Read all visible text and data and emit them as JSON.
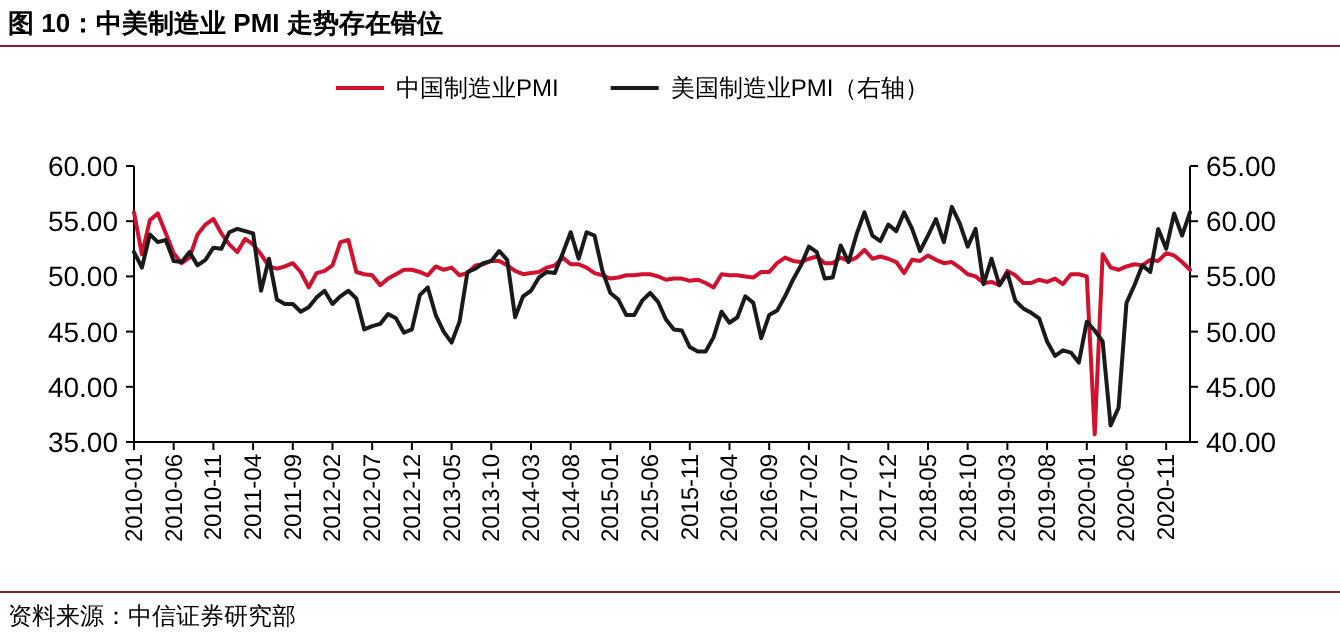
{
  "chart_data": {
    "type": "line",
    "title": "图 10：中美制造业 PMI 走势存在错位",
    "legend": "top",
    "x": [
      "2010-01",
      "2010-02",
      "2010-03",
      "2010-04",
      "2010-05",
      "2010-06",
      "2010-07",
      "2010-08",
      "2010-09",
      "2010-10",
      "2010-11",
      "2010-12",
      "2011-01",
      "2011-02",
      "2011-03",
      "2011-04",
      "2011-05",
      "2011-06",
      "2011-07",
      "2011-08",
      "2011-09",
      "2011-10",
      "2011-11",
      "2011-12",
      "2012-01",
      "2012-02",
      "2012-03",
      "2012-04",
      "2012-05",
      "2012-06",
      "2012-07",
      "2012-08",
      "2012-09",
      "2012-10",
      "2012-11",
      "2012-12",
      "2013-01",
      "2013-02",
      "2013-03",
      "2013-04",
      "2013-05",
      "2013-06",
      "2013-07",
      "2013-08",
      "2013-09",
      "2013-10",
      "2013-11",
      "2013-12",
      "2014-01",
      "2014-02",
      "2014-03",
      "2014-04",
      "2014-05",
      "2014-06",
      "2014-07",
      "2014-08",
      "2014-09",
      "2014-10",
      "2014-11",
      "2014-12",
      "2015-01",
      "2015-02",
      "2015-03",
      "2015-04",
      "2015-05",
      "2015-06",
      "2015-07",
      "2015-08",
      "2015-09",
      "2015-10",
      "2015-11",
      "2015-12",
      "2016-01",
      "2016-02",
      "2016-03",
      "2016-04",
      "2016-05",
      "2016-06",
      "2016-07",
      "2016-08",
      "2016-09",
      "2016-10",
      "2016-11",
      "2016-12",
      "2017-01",
      "2017-02",
      "2017-03",
      "2017-04",
      "2017-05",
      "2017-06",
      "2017-07",
      "2017-08",
      "2017-09",
      "2017-10",
      "2017-11",
      "2017-12",
      "2018-01",
      "2018-02",
      "2018-03",
      "2018-04",
      "2018-05",
      "2018-06",
      "2018-07",
      "2018-08",
      "2018-09",
      "2018-10",
      "2018-11",
      "2018-12",
      "2019-01",
      "2019-02",
      "2019-03",
      "2019-04",
      "2019-05",
      "2019-06",
      "2019-07",
      "2019-08",
      "2019-09",
      "2019-10",
      "2019-11",
      "2019-12",
      "2020-01",
      "2020-02",
      "2020-03",
      "2020-04",
      "2020-05",
      "2020-06",
      "2020-07",
      "2020-08",
      "2020-09",
      "2020-10",
      "2020-11",
      "2020-12",
      "2021-01",
      "2021-02"
    ],
    "series": [
      {
        "name": "中国制造业PMI",
        "color": "#d2112f",
        "values": [
          55.8,
          52.0,
          55.1,
          55.7,
          53.9,
          52.1,
          51.2,
          51.7,
          53.8,
          54.7,
          55.2,
          53.9,
          52.9,
          52.2,
          53.4,
          52.9,
          52.0,
          50.9,
          50.7,
          50.9,
          51.2,
          50.4,
          49.0,
          50.3,
          50.5,
          51.0,
          53.1,
          53.3,
          50.4,
          50.2,
          50.1,
          49.2,
          49.8,
          50.2,
          50.6,
          50.6,
          50.4,
          50.1,
          50.9,
          50.6,
          50.8,
          50.1,
          50.3,
          51.0,
          51.1,
          51.4,
          51.4,
          51.0,
          50.5,
          50.2,
          50.3,
          50.4,
          50.8,
          51.0,
          51.7,
          51.1,
          51.1,
          50.8,
          50.3,
          50.1,
          49.8,
          49.9,
          50.1,
          50.1,
          50.2,
          50.2,
          50.0,
          49.7,
          49.8,
          49.8,
          49.6,
          49.7,
          49.4,
          49.0,
          50.2,
          50.1,
          50.1,
          50.0,
          49.9,
          50.4,
          50.4,
          51.2,
          51.7,
          51.4,
          51.3,
          51.6,
          51.8,
          51.2,
          51.2,
          51.7,
          51.4,
          51.7,
          52.4,
          51.6,
          51.8,
          51.6,
          51.3,
          50.3,
          51.5,
          51.4,
          51.9,
          51.5,
          51.2,
          51.3,
          50.8,
          50.2,
          50.0,
          49.4,
          49.5,
          49.2,
          50.5,
          50.1,
          49.4,
          49.4,
          49.7,
          49.5,
          49.8,
          49.3,
          50.2,
          50.2,
          50.0,
          35.7,
          52.0,
          50.8,
          50.6,
          50.9,
          51.1,
          51.0,
          51.5,
          51.4,
          52.1,
          51.9,
          51.3,
          50.6
        ]
      },
      {
        "name": "美国制造业PMI（右轴）",
        "color": "#1a1a1a",
        "axis": "y2",
        "values": [
          57.2,
          55.8,
          58.8,
          58.1,
          58.3,
          56.4,
          56.3,
          57.2,
          56.0,
          56.5,
          57.6,
          57.5,
          59.0,
          59.3,
          59.1,
          58.9,
          53.7,
          56.6,
          52.9,
          52.5,
          52.5,
          51.8,
          52.2,
          53.1,
          53.7,
          52.5,
          53.2,
          53.7,
          53.0,
          50.2,
          50.5,
          50.7,
          51.6,
          51.2,
          49.9,
          50.2,
          53.3,
          54.0,
          51.5,
          50.0,
          49.0,
          50.9,
          55.4,
          55.7,
          56.2,
          56.4,
          57.3,
          56.5,
          51.3,
          53.2,
          53.7,
          54.9,
          55.4,
          55.3,
          57.1,
          59.0,
          56.6,
          59.0,
          58.7,
          55.5,
          53.5,
          52.9,
          51.5,
          51.5,
          52.8,
          53.5,
          52.7,
          51.1,
          50.2,
          50.1,
          48.6,
          48.2,
          48.2,
          49.5,
          51.8,
          50.8,
          51.3,
          53.2,
          52.6,
          49.4,
          51.5,
          51.9,
          53.2,
          54.7,
          56.0,
          57.7,
          57.2,
          54.8,
          54.9,
          57.8,
          56.3,
          58.8,
          60.8,
          58.7,
          58.2,
          59.7,
          59.1,
          60.8,
          59.3,
          57.3,
          58.7,
          60.2,
          58.1,
          61.3,
          59.8,
          57.7,
          59.3,
          54.3,
          56.6,
          54.2,
          55.3,
          52.8,
          52.1,
          51.7,
          51.2,
          49.1,
          47.8,
          48.3,
          48.1,
          47.2,
          50.9,
          50.1,
          49.1,
          41.5,
          43.1,
          52.6,
          54.2,
          56.0,
          55.4,
          59.3,
          57.5,
          60.7,
          58.7,
          60.8
        ]
      }
    ],
    "xlim": [
      "2010-01",
      "2021-02"
    ],
    "xticks": [
      "2010-01",
      "2010-06",
      "2010-11",
      "2011-04",
      "2011-09",
      "2012-02",
      "2012-07",
      "2012-12",
      "2013-05",
      "2013-10",
      "2014-03",
      "2014-08",
      "2015-01",
      "2015-06",
      "2015-11",
      "2016-04",
      "2016-09",
      "2017-02",
      "2017-07",
      "2017-12",
      "2018-05",
      "2018-10",
      "2019-03",
      "2019-08",
      "2020-01",
      "2020-06",
      "2020-11"
    ],
    "ylim": [
      35,
      60
    ],
    "yticks": [
      {
        "value": 35,
        "label": "35.00"
      },
      {
        "value": 40,
        "label": "40.00"
      },
      {
        "value": 45,
        "label": "45.00"
      },
      {
        "value": 50,
        "label": "50.00"
      },
      {
        "value": 55,
        "label": "55.00"
      },
      {
        "value": 60,
        "label": "60.00"
      }
    ],
    "y2lim": [
      40,
      65
    ],
    "y2ticks": [
      {
        "value": 40,
        "label": "40.00"
      },
      {
        "value": 45,
        "label": "45.00"
      },
      {
        "value": 50,
        "label": "50.00"
      },
      {
        "value": 55,
        "label": "55.00"
      },
      {
        "value": 60,
        "label": "60.00"
      },
      {
        "value": 65,
        "label": "65.00"
      }
    ],
    "annotations": [
      "资料来源：中信证券研究部"
    ]
  }
}
